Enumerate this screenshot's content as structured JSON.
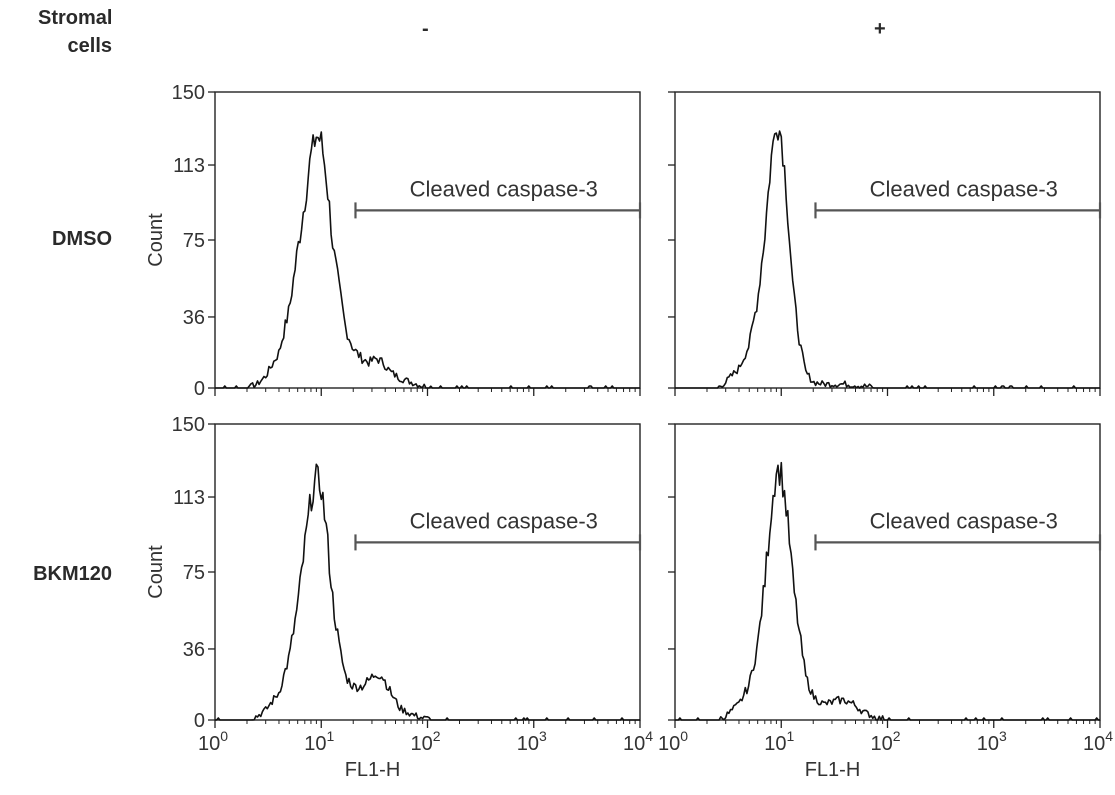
{
  "row_header": {
    "line1": "Stromal",
    "line2": "cells"
  },
  "column_headers": [
    "-",
    "+"
  ],
  "row_labels": [
    "DMSO",
    "BKM120"
  ],
  "chart_data": {
    "type": "histogram",
    "xlabel": "FL1-H",
    "ylabel": "Count",
    "x_scale": "log",
    "xlim": [
      1,
      10000
    ],
    "ylim": [
      0,
      150
    ],
    "y_ticks": [
      0,
      36,
      75,
      113,
      150
    ],
    "x_ticks": [
      {
        "base": "10",
        "exp": "0"
      },
      {
        "base": "10",
        "exp": "1"
      },
      {
        "base": "10",
        "exp": "2"
      },
      {
        "base": "10",
        "exp": "3"
      },
      {
        "base": "10",
        "exp": "4"
      }
    ],
    "gate": {
      "label": "Cleaved caspase-3",
      "range": [
        21,
        10000
      ],
      "height": 90
    },
    "panels": [
      {
        "row": "DMSO",
        "column": "-",
        "points": [
          [
            1.0,
            0
          ],
          [
            2.0,
            0
          ],
          [
            2.5,
            2
          ],
          [
            3,
            6
          ],
          [
            4,
            18
          ],
          [
            5,
            40
          ],
          [
            6,
            70
          ],
          [
            7,
            95
          ],
          [
            8,
            118
          ],
          [
            9,
            128
          ],
          [
            10,
            125
          ],
          [
            11,
            110
          ],
          [
            12,
            90
          ],
          [
            13,
            70
          ],
          [
            15,
            48
          ],
          [
            17,
            30
          ],
          [
            20,
            20
          ],
          [
            24,
            15
          ],
          [
            28,
            13
          ],
          [
            33,
            15
          ],
          [
            38,
            13
          ],
          [
            45,
            8
          ],
          [
            55,
            5
          ],
          [
            70,
            3
          ],
          [
            90,
            1
          ],
          [
            130,
            0
          ],
          [
            10000,
            0
          ]
        ]
      },
      {
        "row": "DMSO",
        "column": "+",
        "points": [
          [
            1.0,
            0
          ],
          [
            2.5,
            0
          ],
          [
            3,
            3
          ],
          [
            4,
            10
          ],
          [
            5,
            22
          ],
          [
            6,
            45
          ],
          [
            7,
            78
          ],
          [
            8,
            115
          ],
          [
            9,
            135
          ],
          [
            10,
            128
          ],
          [
            11,
            105
          ],
          [
            12,
            75
          ],
          [
            13,
            48
          ],
          [
            15,
            22
          ],
          [
            17,
            8
          ],
          [
            20,
            3
          ],
          [
            25,
            2
          ],
          [
            40,
            2
          ],
          [
            60,
            1
          ],
          [
            90,
            0
          ],
          [
            10000,
            0
          ]
        ]
      },
      {
        "row": "BKM120",
        "column": "-",
        "points": [
          [
            1.0,
            0
          ],
          [
            2.0,
            0
          ],
          [
            2.5,
            2
          ],
          [
            3,
            5
          ],
          [
            4,
            14
          ],
          [
            5,
            32
          ],
          [
            6,
            58
          ],
          [
            7,
            88
          ],
          [
            8,
            112
          ],
          [
            9,
            123
          ],
          [
            10,
            118
          ],
          [
            11,
            100
          ],
          [
            12,
            78
          ],
          [
            13,
            58
          ],
          [
            15,
            35
          ],
          [
            17,
            22
          ],
          [
            20,
            17
          ],
          [
            24,
            17
          ],
          [
            28,
            20
          ],
          [
            33,
            24
          ],
          [
            38,
            22
          ],
          [
            45,
            14
          ],
          [
            55,
            6
          ],
          [
            70,
            3
          ],
          [
            90,
            1
          ],
          [
            130,
            0
          ],
          [
            10000,
            0
          ]
        ]
      },
      {
        "row": "BKM120",
        "column": "+",
        "points": [
          [
            1.0,
            0
          ],
          [
            2.5,
            0
          ],
          [
            3,
            2
          ],
          [
            4,
            8
          ],
          [
            5,
            18
          ],
          [
            6,
            38
          ],
          [
            7,
            70
          ],
          [
            8,
            105
          ],
          [
            9,
            127
          ],
          [
            10,
            125
          ],
          [
            11,
            110
          ],
          [
            12,
            90
          ],
          [
            13,
            68
          ],
          [
            15,
            42
          ],
          [
            17,
            22
          ],
          [
            20,
            12
          ],
          [
            25,
            8
          ],
          [
            30,
            9
          ],
          [
            35,
            10
          ],
          [
            40,
            10
          ],
          [
            48,
            8
          ],
          [
            60,
            4
          ],
          [
            80,
            1
          ],
          [
            120,
            0
          ],
          [
            10000,
            0
          ]
        ]
      }
    ]
  }
}
